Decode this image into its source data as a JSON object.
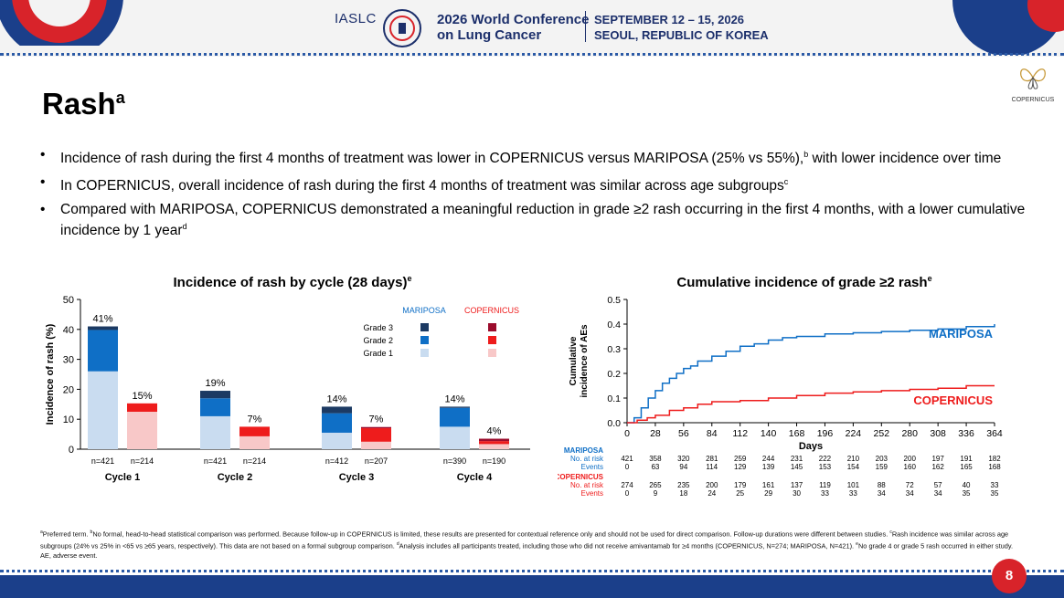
{
  "header": {
    "org": "IASLC",
    "conference_line1": "2026 World Conference",
    "conference_line2": "on Lung Cancer",
    "date_line1": "SEPTEMBER 12 – 15, 2026",
    "date_line2": "SEOUL, REPUBLIC OF KOREA"
  },
  "logo_label": "COPERNICUS",
  "slide": {
    "title": "Rash",
    "title_sup": "a",
    "bullets": [
      {
        "text": "Incidence of rash during the first 4 months of treatment was lower in COPERNICUS versus MARIPOSA (25% vs 55%),",
        "sup": "b",
        "tail": " with lower incidence over time"
      },
      {
        "text": "In COPERNICUS, overall incidence of rash during the first 4 months of treatment was similar across age subgroups",
        "sup": "c",
        "tail": ""
      },
      {
        "text": "Compared with MARIPOSA, COPERNICUS demonstrated a meaningful reduction in grade ≥2 rash occurring in the first 4 months, with a lower cumulative incidence by 1 year",
        "sup": "d",
        "tail": ""
      }
    ]
  },
  "chart_data": [
    {
      "type": "bar",
      "title": "Incidence of rash by cycle (28 days)",
      "title_sup": "e",
      "ylabel": "Incidence of rash (%)",
      "ylim": [
        0,
        50
      ],
      "yticks": [
        0,
        10,
        20,
        30,
        40,
        50
      ],
      "legend_headers": [
        "MARIPOSA",
        "COPERNICUS"
      ],
      "legend_placement": "top-right",
      "stack_order": [
        "Grade 1",
        "Grade 2",
        "Grade 3"
      ],
      "grade_labels": [
        "Grade 3",
        "Grade 2",
        "Grade 1"
      ],
      "colors": {
        "MARIPOSA": {
          "Grade 1": "#c9dcf0",
          "Grade 2": "#0f6fc6",
          "Grade 3": "#1c3a63"
        },
        "COPERNICUS": {
          "Grade 1": "#f8c8c8",
          "Grade 2": "#ee1c1c",
          "Grade 3": "#9b0c2c"
        }
      },
      "groups": [
        {
          "label": "Cycle 1",
          "bars": [
            {
              "study": "MARIPOSA",
              "n": "n=421",
              "total_label": "41%",
              "grades": [
                26,
                13.8,
                1.2
              ]
            },
            {
              "study": "COPERNICUS",
              "n": "n=214",
              "total_label": "15%",
              "grades": [
                12.5,
                2.8,
                0
              ]
            }
          ]
        },
        {
          "label": "Cycle 2",
          "bars": [
            {
              "study": "MARIPOSA",
              "n": "n=421",
              "total_label": "19%",
              "grades": [
                11,
                6,
                2.5
              ]
            },
            {
              "study": "COPERNICUS",
              "n": "n=214",
              "total_label": "7%",
              "grades": [
                4.3,
                3.2,
                0
              ]
            }
          ]
        },
        {
          "label": "Cycle 3",
          "bars": [
            {
              "study": "MARIPOSA",
              "n": "n=412",
              "total_label": "14%",
              "grades": [
                5.5,
                6.5,
                2.2
              ]
            },
            {
              "study": "COPERNICUS",
              "n": "n=207",
              "total_label": "7%",
              "grades": [
                2.5,
                4.5,
                0.4
              ]
            }
          ]
        },
        {
          "label": "Cycle 4",
          "bars": [
            {
              "study": "MARIPOSA",
              "n": "n=390",
              "total_label": "14%",
              "grades": [
                7.5,
                6.3,
                0.4
              ]
            },
            {
              "study": "COPERNICUS",
              "n": "n=190",
              "total_label": "4%",
              "grades": [
                1.7,
                1.0,
                0.8
              ]
            }
          ]
        }
      ]
    },
    {
      "type": "line",
      "title": "Cumulative incidence of grade ≥2 rash",
      "title_sup": "e",
      "xlabel": "Days",
      "ylabel_line1": "Cumulative",
      "ylabel_line2": "incidence of AEs",
      "xlim": [
        0,
        364
      ],
      "ylim": [
        0,
        0.5
      ],
      "xticks": [
        0,
        28,
        56,
        84,
        112,
        140,
        168,
        196,
        224,
        252,
        280,
        308,
        336,
        364
      ],
      "yticks": [
        "0.0",
        "0.1",
        "0.2",
        "0.3",
        "0.4",
        "0.5"
      ],
      "series": [
        {
          "name": "MARIPOSA",
          "color": "#0f6fc6",
          "x": [
            0,
            7,
            14,
            21,
            28,
            35,
            42,
            49,
            56,
            63,
            70,
            84,
            98,
            112,
            126,
            140,
            154,
            168,
            196,
            224,
            252,
            280,
            308,
            336,
            364
          ],
          "y": [
            0,
            0.02,
            0.06,
            0.1,
            0.13,
            0.16,
            0.18,
            0.2,
            0.22,
            0.23,
            0.25,
            0.27,
            0.29,
            0.31,
            0.32,
            0.335,
            0.345,
            0.35,
            0.36,
            0.365,
            0.37,
            0.375,
            0.38,
            0.39,
            0.4
          ]
        },
        {
          "name": "COPERNICUS",
          "color": "#ee1c1c",
          "x": [
            0,
            10,
            20,
            28,
            42,
            56,
            70,
            84,
            112,
            140,
            168,
            196,
            224,
            252,
            280,
            308,
            336,
            364
          ],
          "y": [
            0,
            0.01,
            0.02,
            0.03,
            0.05,
            0.06,
            0.075,
            0.085,
            0.09,
            0.1,
            0.11,
            0.12,
            0.125,
            0.13,
            0.135,
            0.14,
            0.15,
            0.15
          ]
        }
      ],
      "risk_table": {
        "MARIPOSA": {
          "header": "MARIPOSA",
          "labels": [
            "No. at risk",
            "Events"
          ],
          "at_risk": [
            "421",
            "358",
            "320",
            "281",
            "259",
            "244",
            "231",
            "222",
            "210",
            "203",
            "200",
            "197",
            "191",
            "182"
          ],
          "events": [
            "0",
            "63",
            "94",
            "114",
            "129",
            "139",
            "145",
            "153",
            "154",
            "159",
            "160",
            "162",
            "165",
            "168"
          ]
        },
        "COPERNICUS": {
          "header": "COPERNICUS",
          "labels": [
            "No. at risk",
            "Events"
          ],
          "at_risk": [
            "274",
            "265",
            "235",
            "200",
            "179",
            "161",
            "137",
            "119",
            "101",
            "88",
            "72",
            "57",
            "40",
            "33"
          ],
          "events": [
            "0",
            "9",
            "18",
            "24",
            "25",
            "29",
            "30",
            "33",
            "33",
            "34",
            "34",
            "34",
            "35",
            "35"
          ]
        }
      }
    }
  ],
  "footnote": {
    "a": "Preferred term.",
    "b": "No formal, head-to-head statistical comparison was performed. Because follow-up in COPERNICUS is limited, these results are presented for contextual reference only and should not be used for direct comparison. Follow-up durations were different between studies.",
    "c": "Rash incidence was similar across age subgroups (24% vs 25% in <65 vs ≥65 years, respectively). This data are not based on a formal subgroup comparison.",
    "d": "Analysis includes all participants treated, including those who did not receive amivantamab for ≥4 months (COPERNICUS, N=274; MARIPOSA, N=421).",
    "e": "No grade 4 or grade 5 rash occurred in either study.",
    "abbrev": "AE, adverse event."
  },
  "page_number": "8"
}
